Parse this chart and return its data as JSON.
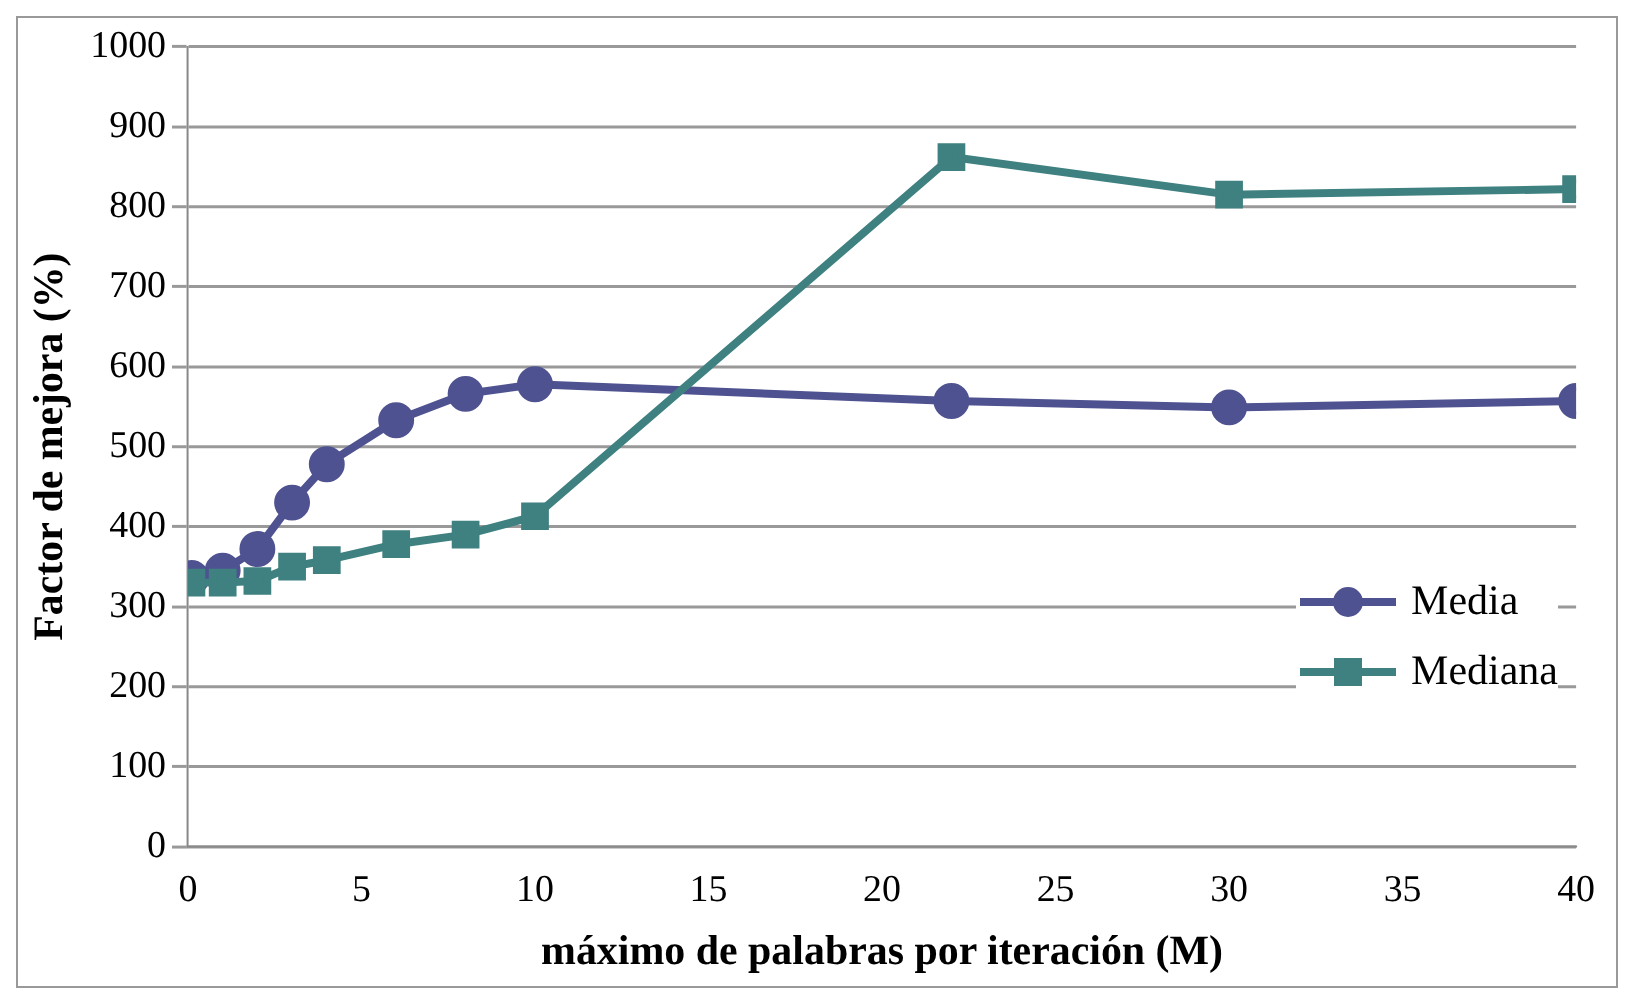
{
  "chart_data": {
    "type": "line",
    "xlabel": "máximo de palabras por iteración (M)",
    "ylabel": "Factor de mejora (%)",
    "x": [
      0.1,
      1,
      2,
      3,
      4,
      6,
      8,
      10,
      22,
      30,
      40
    ],
    "series": [
      {
        "name": "Media",
        "color": "#4f5290",
        "marker": "circle",
        "values": [
          336,
          345,
          372,
          430,
          478,
          533,
          566,
          578,
          557,
          549,
          557
        ]
      },
      {
        "name": "Mediana",
        "color": "#3f8080",
        "marker": "square",
        "values": [
          330,
          330,
          332,
          350,
          358,
          378,
          390,
          413,
          862,
          815,
          822
        ]
      }
    ],
    "xlim": [
      0,
      40
    ],
    "xticks": [
      0,
      5,
      10,
      15,
      20,
      25,
      30,
      35,
      40
    ],
    "ylim": [
      0,
      1000
    ],
    "yticks": [
      0,
      100,
      200,
      300,
      400,
      500,
      600,
      700,
      800,
      900,
      1000
    ],
    "grid": "y",
    "legend": "right",
    "line_style": "solid"
  }
}
